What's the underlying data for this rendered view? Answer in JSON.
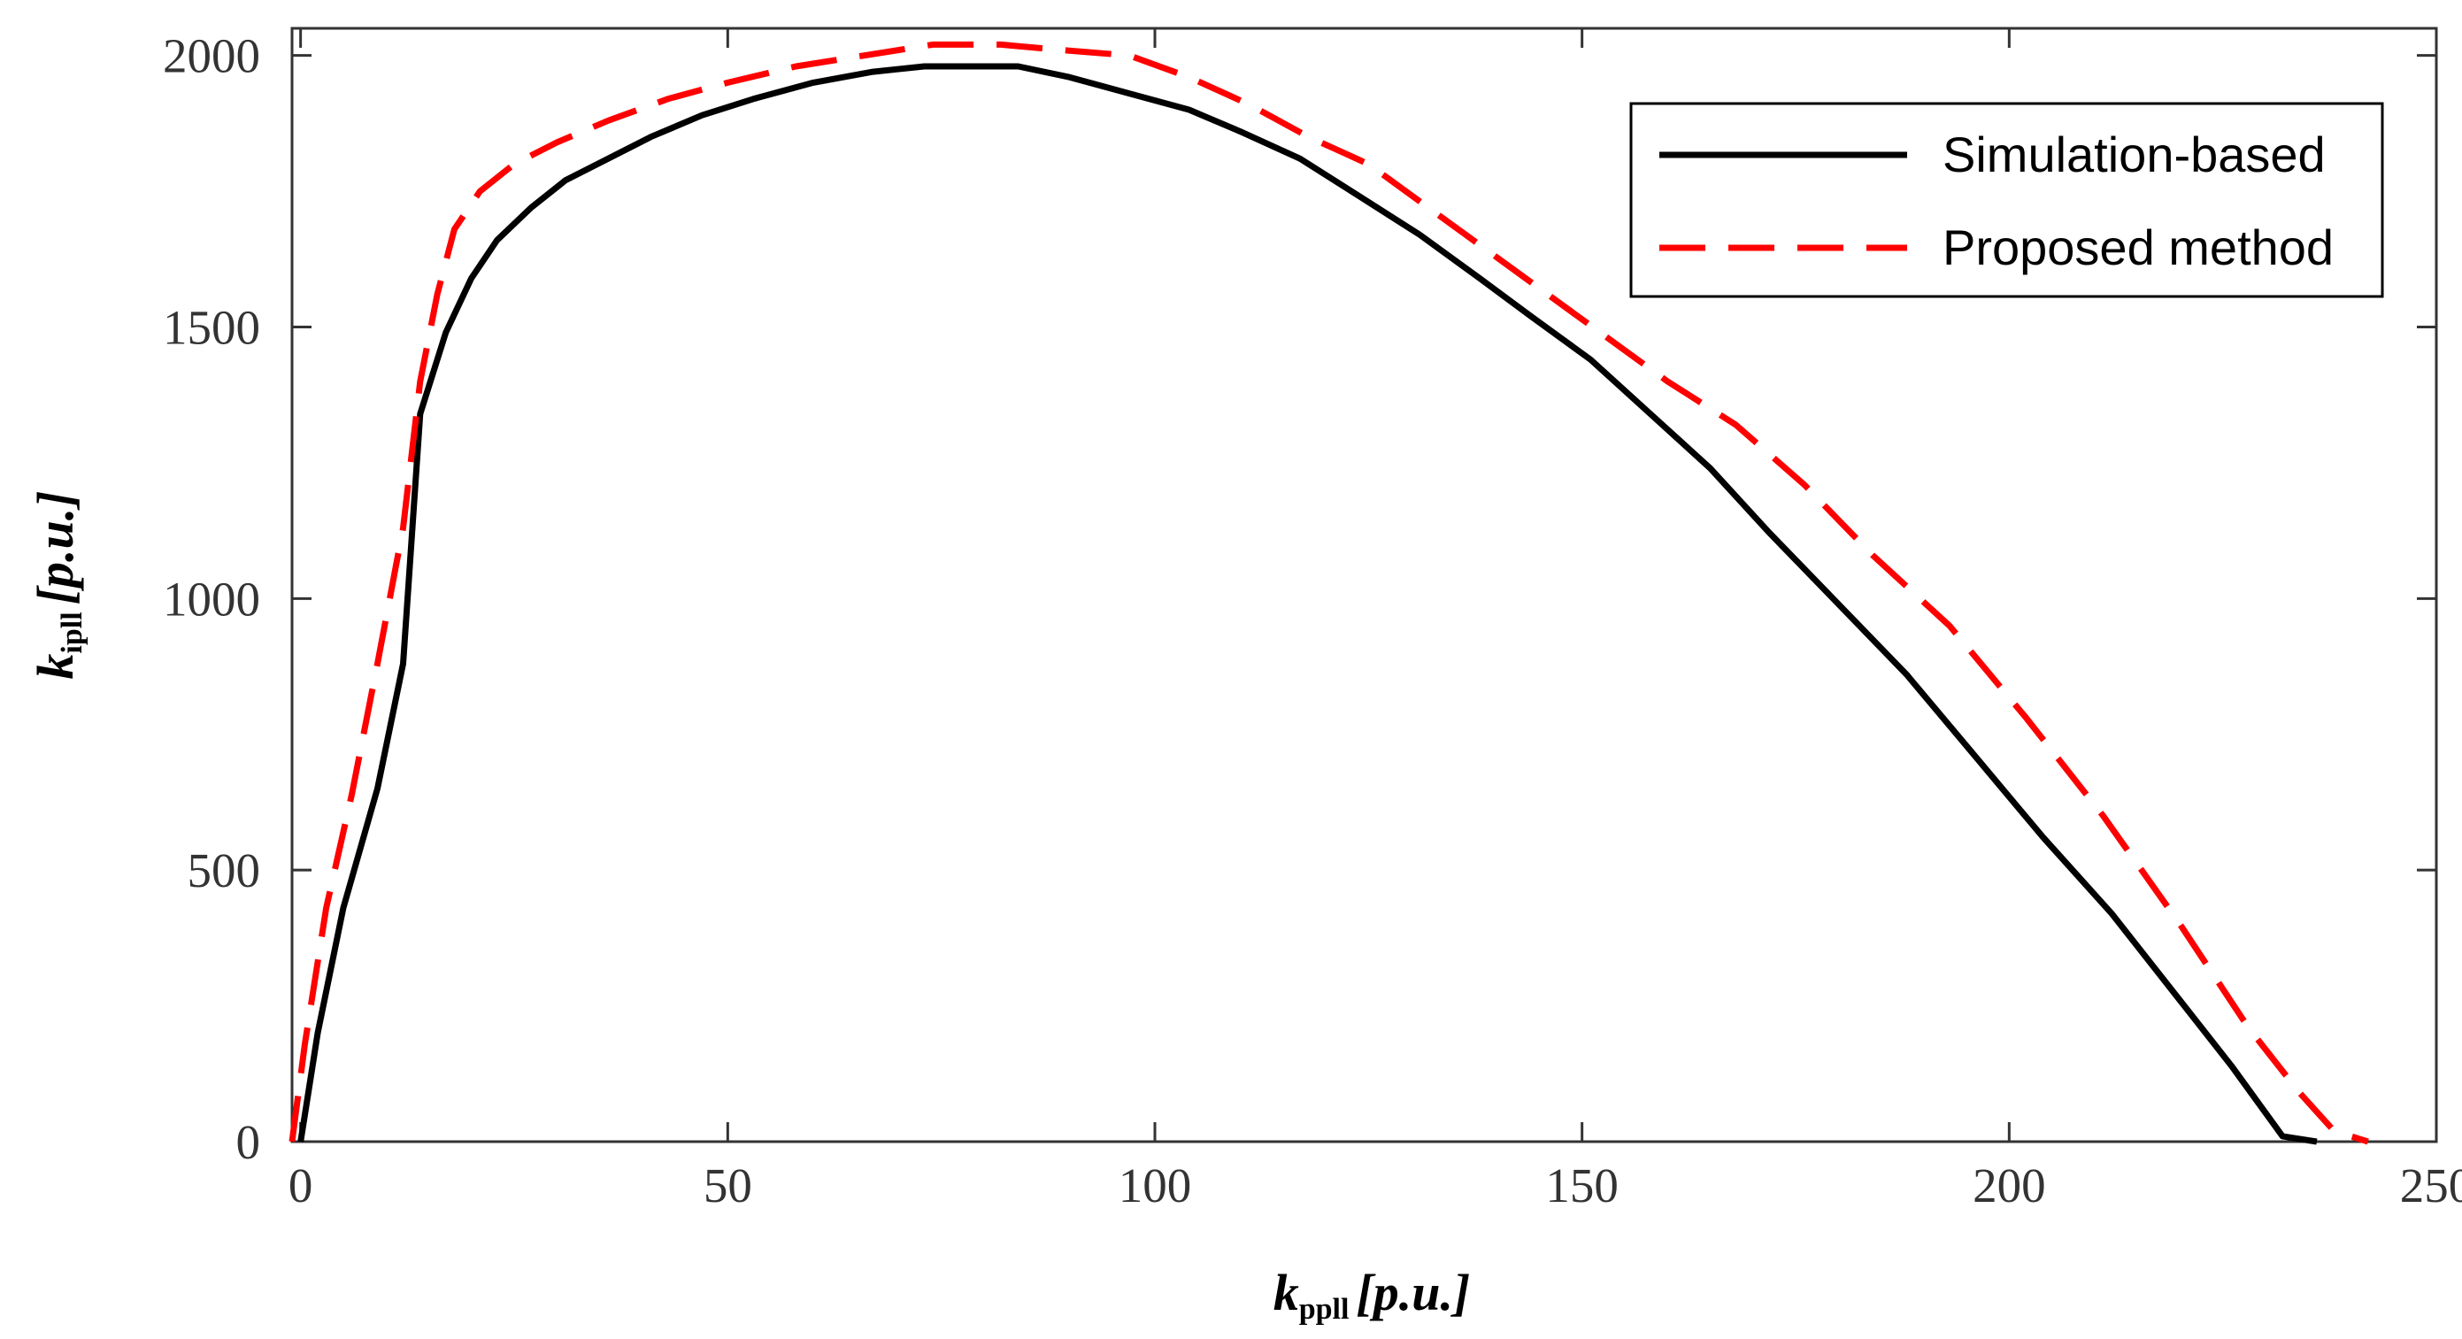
{
  "chart_data": {
    "type": "line",
    "title": "",
    "xlabel": {
      "base": "k",
      "sub": "ppll",
      "units": "[p.u.]"
    },
    "ylabel": {
      "base": "k",
      "sub": "ipll",
      "units": "[p.u.]"
    },
    "xlim": [
      -1,
      250
    ],
    "ylim": [
      0,
      2050
    ],
    "xticks": [
      0,
      50,
      100,
      150,
      200,
      250
    ],
    "yticks": [
      0,
      500,
      1000,
      1500,
      2000
    ],
    "xtick_labels": [
      "0",
      "50",
      "100",
      "150",
      "200",
      "250"
    ],
    "ytick_labels": [
      "0",
      "500",
      "1000",
      "1500",
      "2000"
    ],
    "grid": false,
    "legend_position": "top-right",
    "series": [
      {
        "name": "Simulation-based",
        "color": "#000000",
        "style": "solid",
        "x": [
          0,
          2,
          5,
          9,
          12,
          14,
          17,
          20,
          23,
          27,
          31,
          36,
          41,
          47,
          53,
          60,
          67,
          73,
          79,
          84,
          90,
          97,
          104,
          110,
          117,
          124,
          131,
          138,
          144,
          151,
          158,
          165,
          172,
          180,
          188,
          196,
          204,
          212,
          220,
          226,
          232,
          236
        ],
        "y": [
          0,
          200,
          430,
          650,
          880,
          1340,
          1490,
          1590,
          1660,
          1720,
          1770,
          1810,
          1850,
          1890,
          1920,
          1950,
          1970,
          1980,
          1980,
          1980,
          1960,
          1930,
          1900,
          1860,
          1810,
          1740,
          1670,
          1590,
          1520,
          1440,
          1340,
          1240,
          1120,
          990,
          860,
          710,
          560,
          420,
          260,
          140,
          10,
          0
        ]
      },
      {
        "name": "Proposed method",
        "color": "#ff0000",
        "style": "dashed",
        "x": [
          -1,
          0.5,
          3,
          6,
          9,
          12,
          14,
          16,
          18,
          21,
          25,
          30,
          36,
          43,
          50,
          58,
          66,
          74,
          82,
          89,
          97,
          104,
          111,
          118,
          125,
          132,
          139,
          146,
          153,
          160,
          168,
          176,
          184,
          193,
          202,
          211,
          220,
          228,
          234,
          238,
          242
        ],
        "y": [
          0,
          180,
          430,
          640,
          880,
          1130,
          1400,
          1560,
          1680,
          1750,
          1800,
          1840,
          1880,
          1920,
          1950,
          1980,
          2000,
          2020,
          2020,
          2010,
          2000,
          1960,
          1910,
          1850,
          1800,
          1720,
          1640,
          1560,
          1480,
          1400,
          1320,
          1210,
          1080,
          950,
          780,
          600,
          400,
          210,
          90,
          20,
          0
        ]
      }
    ]
  },
  "legend": {
    "items": [
      {
        "label": "Simulation-based",
        "color": "#000000",
        "style": "solid"
      },
      {
        "label": "Proposed method",
        "color": "#ff0000",
        "style": "dashed"
      }
    ]
  }
}
